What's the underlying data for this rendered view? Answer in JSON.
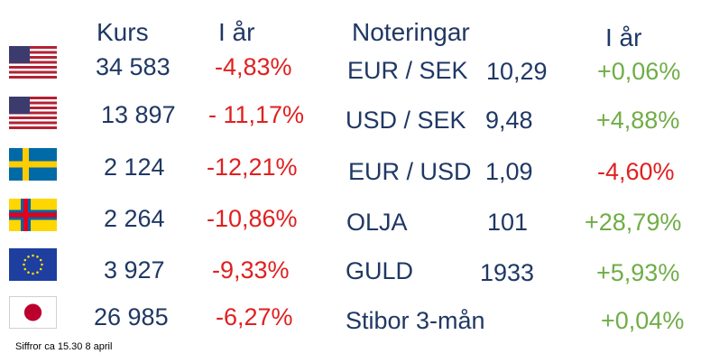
{
  "headers": {
    "kurs": "Kurs",
    "iar_left": "I år",
    "noteringar": "Noteringar",
    "iar_right": "I år"
  },
  "indices": [
    {
      "flag": "usa-flag",
      "value": "34 583",
      "change": "-4,83%"
    },
    {
      "flag": "usa-flag",
      "value": "13 897",
      "change": "- 11,17%"
    },
    {
      "flag": "sweden-flag",
      "value": "2 124",
      "change": "-12,21%"
    },
    {
      "flag": "aland-flag",
      "value": "2 264",
      "change": "-10,86%"
    },
    {
      "flag": "eu-flag",
      "value": "3 927",
      "change": "-9,33%"
    },
    {
      "flag": "japan-flag",
      "value": "26 985",
      "change": "-6,27%"
    }
  ],
  "quotes": [
    {
      "name": "EUR / SEK",
      "value": "10,29",
      "change": "+0,06%"
    },
    {
      "name": "USD / SEK",
      "value": "9,48",
      "change": "+4,88%"
    },
    {
      "name": "EUR / USD",
      "value": "1,09",
      "change": "-4,60%"
    },
    {
      "name": "OLJA",
      "value": "101",
      "change": "+28,79%"
    },
    {
      "name": "GULD",
      "value": "1933",
      "change": "+5,93%"
    },
    {
      "name": "Stibor 3-mån",
      "value": "",
      "change": "+0,04%"
    }
  ],
  "footnote": "Siffror ca 15.30 8 april",
  "colors": {
    "text_dark": "#1f3864",
    "negative": "#e02020",
    "positive": "#70ad47"
  }
}
